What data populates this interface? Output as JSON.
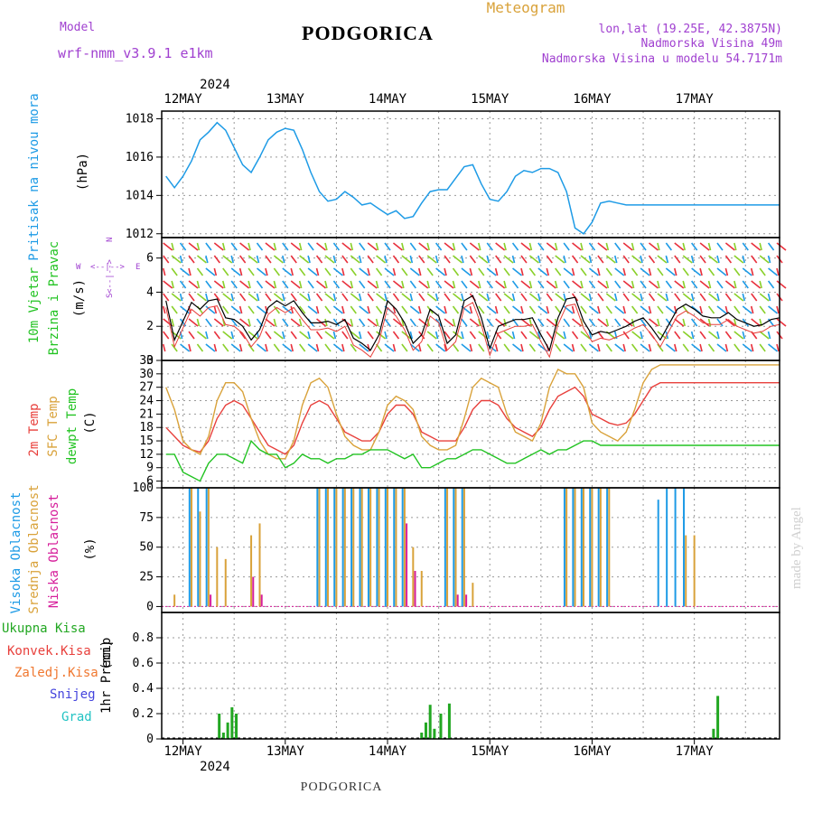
{
  "header": {
    "model_label": "Model",
    "model_name": "wrf-nmm_v3.9.1  e1km",
    "station": "PODGORICA",
    "product": "Meteogram",
    "coords": "lon,lat (19.25E, 42.3875N)",
    "elevation": "Nadmorska Visina 49m",
    "model_elevation": "Nadmorska Visina u modelu 54.7171m",
    "footer_station": "PODGORICA",
    "watermark": "made by Angel"
  },
  "colors": {
    "pressure": "#1e9be6",
    "temp2m": "#e8403c",
    "sfc_temp": "#d9a23a",
    "dewpt": "#22c322",
    "cloud_high": "#1e9be6",
    "cloud_mid": "#d9a23a",
    "cloud_low": "#d61f9b",
    "precip_total": "#22a722",
    "precip_conv": "#e8403c",
    "precip_frozen": "#f07830",
    "snow": "#4444dd",
    "hail": "#22c3c3",
    "wind_label": "#22c322",
    "compass": "#a040d0"
  },
  "chart_data": [
    {
      "type": "line",
      "panel": "pressure",
      "ylabel": "Pritisak na nivou mora",
      "unit": "(hPa)",
      "ylim": [
        1011.8,
        1018.4
      ],
      "yticks": [
        1012,
        1014,
        1016,
        1018
      ],
      "x_hours_from_12may00": [
        -4,
        -2,
        0,
        2,
        4,
        6,
        8,
        10,
        12,
        14,
        16,
        18,
        20,
        22,
        24,
        26,
        28,
        30,
        32,
        34,
        36,
        38,
        40,
        42,
        44,
        46,
        48,
        50,
        52,
        54,
        56,
        58,
        60,
        62,
        64,
        66,
        68,
        70,
        72,
        74,
        76,
        78,
        80,
        82,
        84,
        86,
        88,
        90,
        92,
        94,
        96,
        98,
        100,
        102,
        104,
        106,
        108,
        110,
        112,
        114,
        116,
        118,
        120,
        122,
        124,
        126,
        128,
        130,
        132,
        134,
        136,
        138,
        140
      ],
      "series": [
        {
          "values": [
            1015.0,
            1014.4,
            1015.0,
            1015.8,
            1016.9,
            1017.3,
            1017.8,
            1017.4,
            1016.5,
            1015.6,
            1015.2,
            1016.0,
            1016.9,
            1017.3,
            1017.5,
            1017.4,
            1016.4,
            1015.2,
            1014.2,
            1013.7,
            1013.8,
            1014.2,
            1013.9,
            1013.5,
            1013.6,
            1013.3,
            1013.0,
            1013.2,
            1012.8,
            1012.9,
            1013.6,
            1014.2,
            1014.3,
            1014.3,
            1014.9,
            1015.5,
            1015.6,
            1014.6,
            1013.8,
            1013.7,
            1014.2,
            1015.0,
            1015.3,
            1015.2,
            1015.4,
            1015.4,
            1015.2,
            1014.2,
            1012.3,
            1012.0,
            1012.6,
            1013.6,
            1013.7,
            1013.6,
            1013.5,
            1013.5,
            1013.5,
            1013.5,
            1013.5,
            1013.5,
            1013.5,
            1013.5,
            1013.5,
            1013.5,
            1013.5,
            1013.5,
            1013.5,
            1013.5,
            1013.5,
            1013.5,
            1013.5,
            1013.5,
            1013.5
          ]
        }
      ]
    },
    {
      "type": "line",
      "panel": "wind",
      "ylabel": "10m Vjetar",
      "ylabel2": "Brzina i Pravac",
      "unit": "(m/s)",
      "ylim": [
        0,
        7.2
      ],
      "yticks": [
        0,
        2,
        4,
        6
      ],
      "compass": {
        "w": "W",
        "e": "E",
        "n": "N",
        "s": "S",
        "arrows": "<--|-->"
      },
      "x_hours_from_12may00": [
        -4,
        -2,
        0,
        2,
        4,
        6,
        8,
        10,
        12,
        14,
        16,
        18,
        20,
        22,
        24,
        26,
        28,
        30,
        32,
        34,
        36,
        38,
        40,
        42,
        44,
        46,
        48,
        50,
        52,
        54,
        56,
        58,
        60,
        62,
        64,
        66,
        68,
        70,
        72,
        74,
        76,
        78,
        80,
        82,
        84,
        86,
        88,
        90,
        92,
        94,
        96,
        98,
        100,
        102,
        104,
        106,
        108,
        110,
        112,
        114,
        116,
        118,
        120,
        122,
        124,
        126,
        128,
        130,
        132,
        134,
        136,
        138,
        140
      ],
      "series": [
        {
          "name": "speed",
          "values": [
            3.5,
            1.2,
            2.3,
            3.4,
            3.0,
            3.5,
            3.6,
            2.5,
            2.4,
            2.0,
            1.2,
            1.8,
            3.1,
            3.5,
            3.2,
            3.5,
            2.8,
            2.2,
            2.2,
            2.3,
            2.1,
            2.4,
            1.3,
            1.0,
            0.6,
            1.5,
            3.5,
            3.0,
            2.2,
            1.0,
            1.5,
            3.0,
            2.6,
            1.0,
            1.5,
            3.5,
            3.8,
            2.5,
            0.7,
            2.0,
            2.2,
            2.4,
            2.4,
            2.5,
            1.5,
            0.6,
            2.5,
            3.6,
            3.7,
            2.3,
            1.5,
            1.7,
            1.6,
            1.8,
            2.0,
            2.3,
            2.5,
            1.9,
            1.2,
            2.1,
            3.0,
            3.3,
            3.0,
            2.6,
            2.5,
            2.5,
            2.8,
            2.4,
            2.2,
            2.0,
            2.1,
            2.4,
            2.5
          ]
        }
      ]
    },
    {
      "type": "line",
      "panel": "temperature",
      "ylabels": [
        "2m Temp",
        "SFC Temp",
        "dewpt Temp"
      ],
      "unit": "(C)",
      "ylim": [
        4.5,
        33
      ],
      "yticks": [
        6,
        9,
        12,
        15,
        18,
        21,
        24,
        27,
        30,
        33
      ],
      "x_hours_from_12may00": [
        -4,
        -2,
        0,
        2,
        4,
        6,
        8,
        10,
        12,
        14,
        16,
        18,
        20,
        22,
        24,
        26,
        28,
        30,
        32,
        34,
        36,
        38,
        40,
        42,
        44,
        46,
        48,
        50,
        52,
        54,
        56,
        58,
        60,
        62,
        64,
        66,
        68,
        70,
        72,
        74,
        76,
        78,
        80,
        82,
        84,
        86,
        88,
        90,
        92,
        94,
        96,
        98,
        100,
        102,
        104,
        106,
        108,
        110,
        112,
        114,
        116,
        118,
        120,
        122,
        124,
        126,
        128,
        130,
        132,
        134,
        136,
        138,
        140
      ],
      "series": [
        {
          "name": "2m Temp",
          "values": [
            18,
            16,
            14,
            13,
            12.5,
            15,
            20,
            23,
            24,
            23,
            20,
            17,
            14,
            13,
            12,
            14,
            19,
            23,
            24,
            23,
            20,
            17,
            16,
            15,
            15,
            17,
            21,
            23,
            23,
            21,
            17,
            16,
            15,
            15,
            15,
            18,
            22,
            24,
            24,
            23,
            20,
            18,
            17,
            16,
            18,
            22,
            25,
            26,
            27,
            25,
            21,
            20,
            19,
            18.5,
            19,
            21,
            24,
            27,
            28,
            28,
            28,
            28,
            28,
            28,
            28,
            28,
            28,
            28,
            28,
            28,
            28,
            28,
            28
          ]
        },
        {
          "name": "SFC Temp",
          "values": [
            27,
            22,
            15,
            13,
            12,
            16,
            24,
            28,
            28,
            26,
            20,
            15,
            12,
            11,
            11,
            15,
            23,
            28,
            29,
            27,
            21,
            16,
            14,
            13,
            13,
            17,
            23,
            25,
            24,
            22,
            16,
            14,
            13,
            13,
            14,
            20,
            27,
            29,
            28,
            27,
            21,
            17,
            16,
            15,
            19,
            27,
            31,
            30,
            30,
            27,
            19,
            17,
            16,
            15,
            17,
            22,
            28,
            31,
            32,
            32,
            32,
            32,
            32,
            32,
            32,
            32,
            32,
            32,
            32,
            32,
            32,
            32,
            32
          ]
        },
        {
          "name": "dewpt Temp",
          "values": [
            12,
            12,
            8,
            7,
            6,
            10,
            12,
            12,
            11,
            10,
            15,
            13,
            12,
            12,
            9,
            10,
            12,
            11,
            11,
            10,
            11,
            11,
            12,
            12,
            13,
            13,
            13,
            12,
            11,
            12,
            9,
            9,
            10,
            11,
            11,
            12,
            13,
            13,
            12,
            11,
            10,
            10,
            11,
            12,
            13,
            12,
            13,
            13,
            14,
            15,
            15,
            14,
            14,
            14,
            14,
            14,
            14,
            14,
            14,
            14,
            14,
            14,
            14,
            14,
            14,
            14,
            14,
            14,
            14,
            14,
            14,
            14,
            14
          ]
        }
      ]
    },
    {
      "type": "bar",
      "panel": "clouds",
      "ylabels": [
        "Visoka Oblacnost",
        "Srednja Oblacnost",
        "Niska Oblacnost"
      ],
      "unit": "(%)",
      "ylim": [
        -5,
        100
      ],
      "yticks": [
        0,
        25,
        50,
        75,
        100
      ],
      "x_hours_from_12may00": [
        -2,
        0,
        2,
        4,
        6,
        8,
        10,
        12,
        14,
        16,
        18,
        20,
        22,
        24,
        26,
        28,
        30,
        32,
        34,
        36,
        38,
        40,
        42,
        44,
        46,
        48,
        50,
        52,
        54,
        56,
        58,
        60,
        62,
        64,
        66,
        68,
        70,
        72,
        74,
        76,
        78,
        80,
        82,
        84,
        86,
        88,
        90,
        92,
        94,
        96,
        98,
        100,
        102,
        104,
        106,
        108,
        110,
        112,
        114,
        116,
        118,
        120,
        122,
        124,
        126,
        128,
        130,
        132,
        134,
        136,
        138,
        140
      ],
      "series": [
        {
          "name": "high",
          "values": [
            0,
            0,
            100,
            100,
            100,
            0,
            0,
            0,
            0,
            0,
            0,
            0,
            0,
            0,
            0,
            0,
            0,
            100,
            100,
            100,
            100,
            100,
            100,
            100,
            100,
            100,
            100,
            100,
            0,
            0,
            0,
            0,
            100,
            100,
            100,
            0,
            0,
            0,
            0,
            0,
            0,
            0,
            0,
            0,
            0,
            0,
            100,
            100,
            100,
            100,
            100,
            100,
            0,
            0,
            0,
            0,
            0,
            90,
            100,
            100,
            100,
            0,
            0,
            0,
            0,
            0,
            0,
            0,
            0,
            0,
            0,
            0
          ]
        },
        {
          "name": "mid",
          "values": [
            10,
            0,
            100,
            80,
            100,
            50,
            40,
            0,
            0,
            60,
            70,
            0,
            0,
            0,
            0,
            0,
            0,
            100,
            100,
            100,
            100,
            100,
            100,
            100,
            100,
            100,
            100,
            100,
            50,
            30,
            0,
            0,
            100,
            100,
            100,
            20,
            0,
            0,
            0,
            0,
            0,
            0,
            0,
            0,
            0,
            0,
            100,
            100,
            100,
            100,
            100,
            100,
            0,
            0,
            0,
            0,
            0,
            0,
            0,
            0,
            60,
            60,
            0,
            0,
            0,
            0,
            0,
            0,
            0,
            0,
            0,
            0
          ]
        },
        {
          "name": "low",
          "values": [
            0,
            0,
            0,
            0,
            10,
            0,
            0,
            0,
            0,
            25,
            10,
            0,
            0,
            0,
            0,
            0,
            0,
            0,
            0,
            0,
            0,
            0,
            0,
            0,
            0,
            0,
            0,
            70,
            30,
            0,
            0,
            0,
            0,
            10,
            10,
            0,
            0,
            0,
            0,
            0,
            0,
            0,
            0,
            0,
            0,
            0,
            0,
            0,
            0,
            0,
            0,
            0,
            0,
            0,
            0,
            0,
            0,
            0,
            0,
            0,
            0,
            0,
            0,
            0,
            0,
            0,
            0,
            0,
            0,
            0,
            0,
            0
          ]
        }
      ]
    },
    {
      "type": "bar",
      "panel": "precip",
      "ylabel": "1hr Precip",
      "unit": "(mm)",
      "legend": [
        "Ukupna Kisa",
        "Konvek.Kisa",
        "Zaledj.Kisa",
        "Snijeg",
        "Grad"
      ],
      "ylim": [
        0,
        1.0
      ],
      "yticks": [
        0,
        0.2,
        0.4,
        0.6,
        0.8
      ],
      "x_hours_from_12may00": [
        8.5,
        9.5,
        10.5,
        11.5,
        12.5,
        56,
        57,
        58,
        59,
        60.5,
        62.5,
        124.5,
        125.5
      ],
      "series": [
        {
          "name": "Ukupna Kisa",
          "values": [
            0.2,
            0.05,
            0.13,
            0.25,
            0.2,
            0.05,
            0.13,
            0.27,
            0.08,
            0.2,
            0.28,
            0.08,
            0.34
          ]
        }
      ]
    }
  ],
  "xaxis": {
    "year": "2024",
    "day_labels": [
      "12MAY",
      "13MAY",
      "14MAY",
      "15MAY",
      "16MAY",
      "17MAY"
    ],
    "x_range_hours": [
      -5,
      140
    ]
  }
}
